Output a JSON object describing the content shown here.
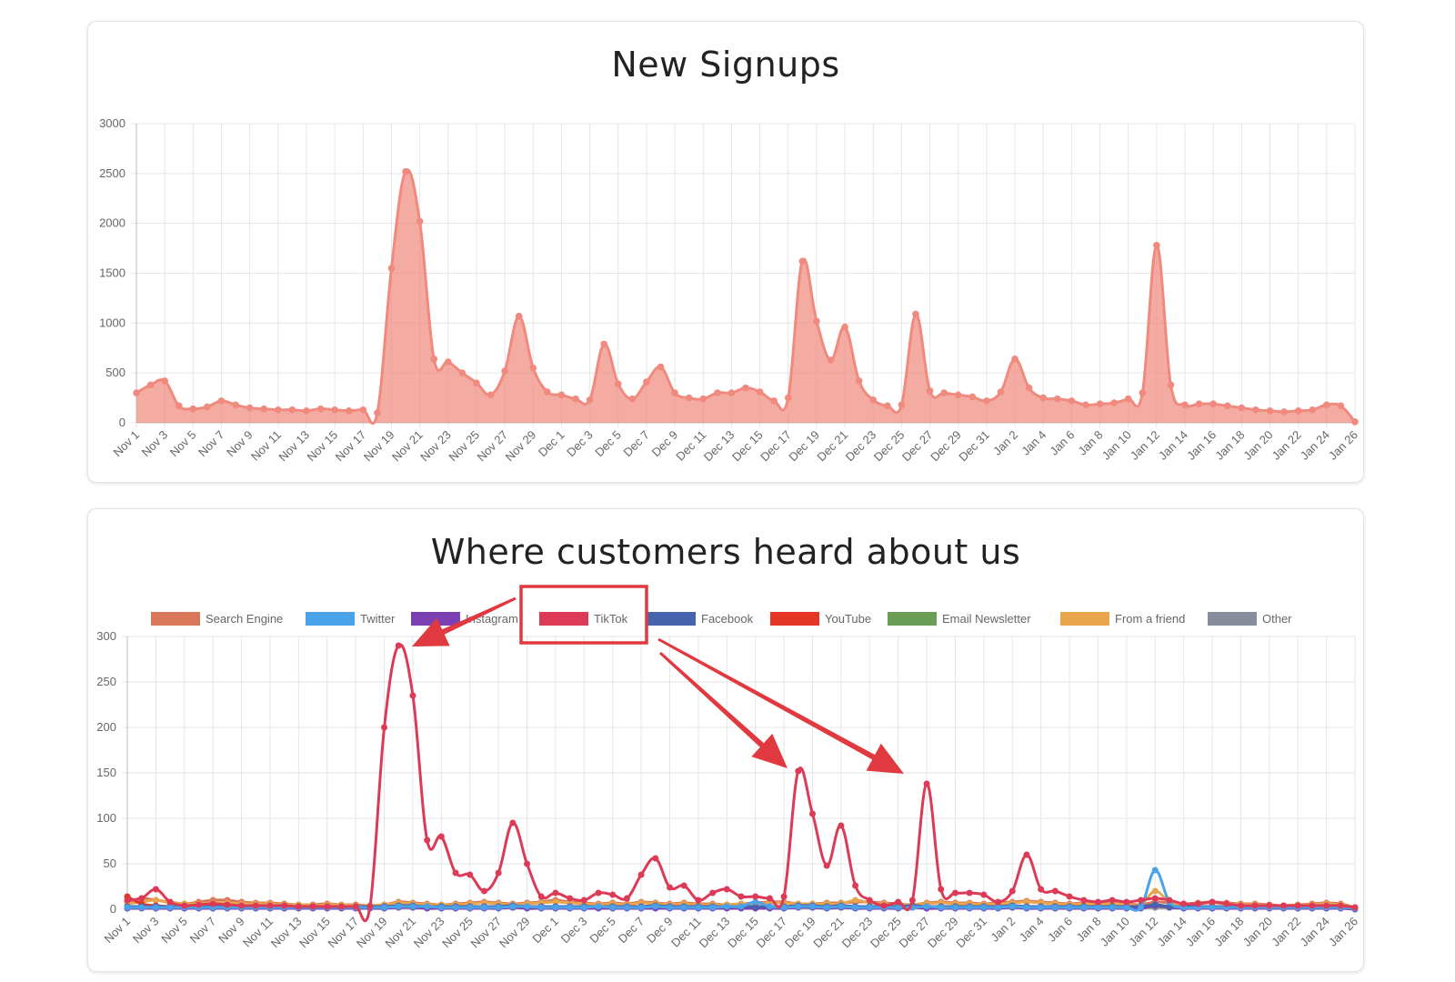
{
  "charts": {
    "signups_title": "New Signups",
    "sources_title": "Where customers heard about us"
  },
  "chart_data": [
    {
      "type": "area",
      "title": "New Signups",
      "x": [
        "Nov 1",
        "Nov 2",
        "Nov 3",
        "Nov 4",
        "Nov 5",
        "Nov 6",
        "Nov 7",
        "Nov 8",
        "Nov 9",
        "Nov 10",
        "Nov 11",
        "Nov 12",
        "Nov 13",
        "Nov 14",
        "Nov 15",
        "Nov 16",
        "Nov 17",
        "Nov 18",
        "Nov 19",
        "Nov 20",
        "Nov 21",
        "Nov 22",
        "Nov 23",
        "Nov 24",
        "Nov 25",
        "Nov 26",
        "Nov 27",
        "Nov 28",
        "Nov 29",
        "Nov 30",
        "Dec 1",
        "Dec 2",
        "Dec 3",
        "Dec 4",
        "Dec 5",
        "Dec 6",
        "Dec 7",
        "Dec 8",
        "Dec 9",
        "Dec 10",
        "Dec 11",
        "Dec 12",
        "Dec 13",
        "Dec 14",
        "Dec 15",
        "Dec 16",
        "Dec 17",
        "Dec 18",
        "Dec 19",
        "Dec 20",
        "Dec 21",
        "Dec 22",
        "Dec 23",
        "Dec 24",
        "Dec 25",
        "Dec 26",
        "Dec 27",
        "Dec 28",
        "Dec 29",
        "Dec 30",
        "Dec 31",
        "Jan 1",
        "Jan 2",
        "Jan 3",
        "Jan 4",
        "Jan 5",
        "Jan 6",
        "Jan 7",
        "Jan 8",
        "Jan 9",
        "Jan 10",
        "Jan 11",
        "Jan 12",
        "Jan 13",
        "Jan 14",
        "Jan 15",
        "Jan 16",
        "Jan 17",
        "Jan 18",
        "Jan 19",
        "Jan 20",
        "Jan 21",
        "Jan 22",
        "Jan 23",
        "Jan 24",
        "Jan 25",
        "Jan 26"
      ],
      "x_tick_labels": [
        "Nov 1",
        "Nov 3",
        "Nov 5",
        "Nov 7",
        "Nov 9",
        "Nov 11",
        "Nov 13",
        "Nov 15",
        "Nov 17",
        "Nov 19",
        "Nov 21",
        "Nov 23",
        "Nov 25",
        "Nov 27",
        "Nov 29",
        "Dec 1",
        "Dec 3",
        "Dec 5",
        "Dec 7",
        "Dec 9",
        "Dec 11",
        "Dec 13",
        "Dec 15",
        "Dec 17",
        "Dec 19",
        "Dec 21",
        "Dec 23",
        "Dec 25",
        "Dec 27",
        "Dec 29",
        "Dec 31",
        "Jan 2",
        "Jan 4",
        "Jan 6",
        "Jan 8",
        "Jan 10",
        "Jan 12",
        "Jan 14",
        "Jan 16",
        "Jan 18",
        "Jan 20",
        "Jan 22",
        "Jan 24",
        "Jan 26"
      ],
      "series": [
        {
          "color": "#f08a7e",
          "values": [
            300,
            380,
            420,
            170,
            140,
            160,
            220,
            180,
            150,
            140,
            130,
            130,
            120,
            140,
            130,
            120,
            130,
            100,
            1550,
            2520,
            2020,
            640,
            610,
            500,
            400,
            280,
            520,
            1070,
            550,
            310,
            280,
            240,
            230,
            790,
            390,
            240,
            410,
            560,
            300,
            250,
            240,
            300,
            300,
            350,
            310,
            220,
            250,
            1620,
            1020,
            630,
            960,
            420,
            230,
            170,
            180,
            1090,
            320,
            300,
            280,
            260,
            220,
            310,
            640,
            350,
            250,
            240,
            220,
            180,
            190,
            200,
            240,
            300,
            1780,
            380,
            180,
            190,
            190,
            170,
            150,
            130,
            120,
            110,
            120,
            130,
            180,
            170,
            10
          ]
        }
      ],
      "ylim": [
        0,
        3000
      ],
      "y_ticks": [
        0,
        500,
        1000,
        1500,
        2000,
        2500,
        3000
      ],
      "grid": true
    },
    {
      "type": "line",
      "title": "Where customers heard about us",
      "x_tick_labels": [
        "Nov 1",
        "Nov 3",
        "Nov 5",
        "Nov 7",
        "Nov 9",
        "Nov 11",
        "Nov 13",
        "Nov 15",
        "Nov 17",
        "Nov 19",
        "Nov 21",
        "Nov 23",
        "Nov 25",
        "Nov 27",
        "Nov 29",
        "Dec 1",
        "Dec 3",
        "Dec 5",
        "Dec 7",
        "Dec 9",
        "Dec 11",
        "Dec 13",
        "Dec 15",
        "Dec 17",
        "Dec 19",
        "Dec 21",
        "Dec 23",
        "Dec 25",
        "Dec 27",
        "Dec 29",
        "Dec 31",
        "Jan 2",
        "Jan 4",
        "Jan 6",
        "Jan 8",
        "Jan 10",
        "Jan 12",
        "Jan 14",
        "Jan 16",
        "Jan 18",
        "Jan 20",
        "Jan 22",
        "Jan 24",
        "Jan 26"
      ],
      "legend_position": "top",
      "ylim": [
        0,
        300
      ],
      "y_ticks": [
        0,
        50,
        100,
        150,
        200,
        250,
        300
      ],
      "grid": true,
      "series": [
        {
          "name": "Search Engine",
          "color": "#d9775a",
          "values": [
            8,
            12,
            10,
            8,
            6,
            8,
            10,
            10,
            8,
            7,
            7,
            6,
            5,
            5,
            6,
            5,
            5,
            4,
            5,
            8,
            7,
            6,
            5,
            6,
            7,
            8,
            7,
            6,
            7,
            8,
            10,
            8,
            7,
            6,
            7,
            6,
            8,
            7,
            6,
            7,
            6,
            6,
            5,
            6,
            7,
            8,
            8,
            6,
            6,
            7,
            7,
            8,
            8,
            7,
            6,
            5,
            7,
            8,
            7,
            7,
            6,
            7,
            8,
            9,
            8,
            7,
            6,
            7,
            6,
            7,
            6,
            5,
            8,
            7,
            6,
            7,
            8,
            7,
            6,
            6,
            5,
            4,
            5,
            6,
            7,
            6,
            2
          ]
        },
        {
          "name": "Twitter",
          "color": "#4aa3e8",
          "values": [
            2,
            2,
            2,
            2,
            2,
            2,
            2,
            2,
            2,
            2,
            2,
            2,
            2,
            2,
            2,
            2,
            2,
            2,
            2,
            3,
            3,
            3,
            2,
            2,
            2,
            2,
            2,
            3,
            3,
            2,
            2,
            2,
            2,
            3,
            2,
            2,
            2,
            3,
            2,
            2,
            2,
            2,
            3,
            3,
            8,
            3,
            2,
            3,
            3,
            2,
            3,
            2,
            2,
            2,
            2,
            2,
            3,
            2,
            2,
            2,
            2,
            2,
            3,
            2,
            2,
            2,
            2,
            2,
            2,
            2,
            2,
            2,
            43,
            8,
            2,
            2,
            2,
            2,
            2,
            2,
            2,
            2,
            2,
            2,
            2,
            2,
            1
          ]
        },
        {
          "name": "Instagram",
          "color": "#7b3fb3",
          "values": [
            1,
            1,
            1,
            1,
            1,
            1,
            1,
            1,
            1,
            1,
            1,
            1,
            1,
            1,
            1,
            1,
            1,
            1,
            1,
            2,
            2,
            1,
            1,
            1,
            1,
            1,
            1,
            2,
            1,
            1,
            1,
            1,
            1,
            1,
            1,
            1,
            1,
            1,
            1,
            1,
            1,
            1,
            1,
            1,
            1,
            1,
            1,
            2,
            2,
            1,
            2,
            1,
            1,
            1,
            1,
            2,
            1,
            1,
            1,
            1,
            1,
            1,
            2,
            1,
            1,
            1,
            1,
            1,
            1,
            1,
            1,
            1,
            4,
            2,
            1,
            1,
            1,
            1,
            1,
            1,
            1,
            1,
            1,
            1,
            1,
            1,
            0
          ]
        },
        {
          "name": "TikTok",
          "color": "#dc3a56",
          "values": [
            10,
            12,
            22,
            8,
            4,
            5,
            6,
            5,
            4,
            4,
            4,
            4,
            3,
            3,
            3,
            3,
            3,
            3,
            200,
            290,
            235,
            76,
            80,
            40,
            38,
            20,
            40,
            95,
            50,
            14,
            18,
            12,
            10,
            18,
            16,
            12,
            38,
            56,
            24,
            26,
            10,
            18,
            22,
            14,
            14,
            12,
            14,
            152,
            105,
            48,
            92,
            26,
            10,
            4,
            8,
            10,
            138,
            22,
            18,
            18,
            16,
            8,
            20,
            60,
            22,
            20,
            14,
            10,
            8,
            10,
            8,
            10,
            12,
            10,
            6,
            6,
            8,
            6,
            4,
            4,
            4,
            4,
            4,
            4,
            4,
            4,
            2
          ]
        },
        {
          "name": "Facebook",
          "color": "#4664ae",
          "values": [
            3,
            3,
            3,
            3,
            3,
            3,
            3,
            3,
            3,
            3,
            3,
            3,
            3,
            3,
            3,
            3,
            3,
            3,
            3,
            4,
            4,
            3,
            3,
            3,
            3,
            3,
            3,
            4,
            3,
            3,
            3,
            3,
            3,
            3,
            3,
            3,
            3,
            4,
            3,
            3,
            3,
            3,
            3,
            3,
            3,
            3,
            3,
            4,
            4,
            3,
            4,
            3,
            3,
            3,
            3,
            4,
            3,
            3,
            3,
            3,
            3,
            3,
            4,
            3,
            3,
            3,
            3,
            3,
            3,
            3,
            3,
            3,
            5,
            3,
            3,
            3,
            3,
            3,
            3,
            3,
            3,
            3,
            3,
            3,
            3,
            3,
            1
          ]
        },
        {
          "name": "YouTube",
          "color": "#e53525",
          "values": [
            14,
            6,
            4,
            3,
            3,
            3,
            3,
            3,
            3,
            3,
            3,
            3,
            3,
            3,
            3,
            3,
            3,
            3,
            3,
            3,
            3,
            3,
            3,
            3,
            3,
            3,
            3,
            3,
            3,
            3,
            3,
            3,
            3,
            3,
            3,
            3,
            3,
            3,
            3,
            3,
            3,
            3,
            3,
            3,
            3,
            3,
            3,
            3,
            3,
            3,
            3,
            3,
            3,
            3,
            3,
            3,
            3,
            3,
            3,
            3,
            3,
            3,
            3,
            3,
            3,
            3,
            3,
            3,
            3,
            3,
            3,
            3,
            3,
            3,
            3,
            3,
            3,
            3,
            3,
            3,
            3,
            3,
            3,
            3,
            3,
            3,
            1
          ]
        },
        {
          "name": "Email Newsletter",
          "color": "#6a9d55",
          "values": [
            2,
            2,
            2,
            2,
            2,
            2,
            2,
            2,
            2,
            2,
            2,
            2,
            2,
            2,
            2,
            2,
            2,
            2,
            2,
            2,
            2,
            2,
            2,
            2,
            2,
            2,
            2,
            2,
            2,
            2,
            2,
            2,
            2,
            2,
            2,
            2,
            2,
            2,
            2,
            2,
            2,
            2,
            2,
            2,
            2,
            2,
            2,
            2,
            2,
            2,
            2,
            2,
            2,
            2,
            2,
            2,
            2,
            2,
            2,
            2,
            2,
            2,
            2,
            2,
            2,
            2,
            2,
            2,
            2,
            2,
            2,
            2,
            2,
            2,
            2,
            2,
            2,
            2,
            2,
            2,
            2,
            2,
            2,
            2,
            2,
            2,
            1
          ]
        },
        {
          "name": "From a friend",
          "color": "#e8a54c",
          "values": [
            6,
            8,
            10,
            7,
            6,
            6,
            7,
            7,
            6,
            6,
            6,
            5,
            5,
            4,
            5,
            5,
            4,
            4,
            5,
            7,
            6,
            5,
            5,
            5,
            6,
            7,
            6,
            5,
            6,
            7,
            8,
            7,
            6,
            5,
            6,
            5,
            7,
            6,
            5,
            6,
            5,
            5,
            5,
            6,
            6,
            7,
            7,
            6,
            6,
            6,
            6,
            10,
            7,
            6,
            5,
            5,
            6,
            7,
            6,
            6,
            5,
            6,
            7,
            8,
            7,
            6,
            5,
            6,
            5,
            6,
            5,
            5,
            20,
            8,
            5,
            6,
            7,
            6,
            5,
            5,
            4,
            4,
            5,
            5,
            6,
            5,
            2
          ]
        },
        {
          "name": "Other",
          "color": "#878d9a",
          "values": [
            2,
            2,
            2,
            2,
            2,
            2,
            2,
            2,
            2,
            2,
            2,
            2,
            2,
            2,
            2,
            2,
            2,
            2,
            2,
            2,
            2,
            2,
            2,
            2,
            2,
            2,
            2,
            2,
            2,
            2,
            2,
            2,
            2,
            2,
            2,
            2,
            2,
            2,
            2,
            2,
            2,
            2,
            2,
            2,
            2,
            2,
            2,
            2,
            2,
            2,
            2,
            2,
            2,
            2,
            2,
            2,
            2,
            2,
            2,
            2,
            2,
            2,
            2,
            2,
            2,
            2,
            2,
            2,
            2,
            2,
            2,
            2,
            2,
            2,
            2,
            2,
            2,
            2,
            2,
            2,
            2,
            2,
            2,
            2,
            2,
            2,
            1
          ]
        }
      ]
    }
  ],
  "annotations": {
    "highlight_color": "#e0393f"
  }
}
